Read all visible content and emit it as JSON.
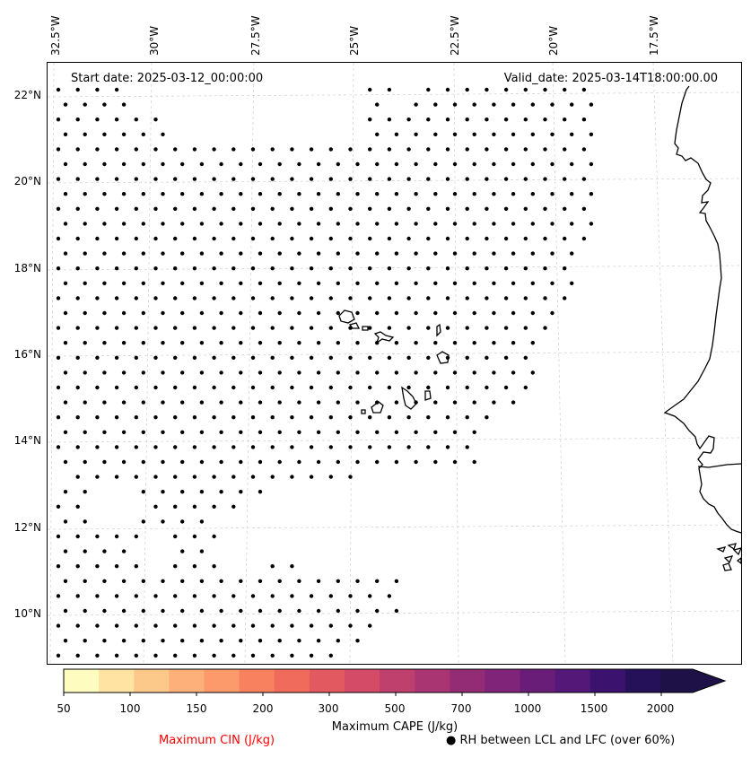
{
  "map": {
    "start_date_text": "Start date: 2025-03-12_00:00:00",
    "valid_date_text": "Valid_date: 2025-03-14T18:00:00.00",
    "longitude_labels": [
      "32.5°W",
      "30°W",
      "27.5°W",
      "25°W",
      "22.5°W",
      "20°W",
      "17.5°W"
    ],
    "latitude_labels": [
      "22°N",
      "20°N",
      "18°N",
      "16°N",
      "14°N",
      "12°N",
      "10°N"
    ],
    "gridlines": true,
    "coastline_color": "#000000",
    "marker_color": "#000000"
  },
  "colorbar": {
    "title": "Maximum CAPE (J/kg)",
    "tick_labels": [
      "50",
      "100",
      "150",
      "200",
      "300",
      "500",
      "700",
      "1000",
      "1500",
      "2000"
    ],
    "colors": [
      "#fefdbf",
      "#fee3a2",
      "#fdc98a",
      "#fdb07a",
      "#fc9a6b",
      "#f8815f",
      "#f16b5d",
      "#e35960",
      "#d34b66",
      "#bf406d",
      "#a93572",
      "#942b75",
      "#7f2478",
      "#6a1c79",
      "#531878",
      "#3b126d",
      "#25105a"
    ],
    "extend_color": "#1e1148"
  },
  "legend": {
    "cin_label": "Maximum CIN (J/kg)",
    "cin_color": "#ff0000",
    "rh_symbol": "●",
    "rh_label": "RH between LCL and LFC (over 60%)"
  }
}
